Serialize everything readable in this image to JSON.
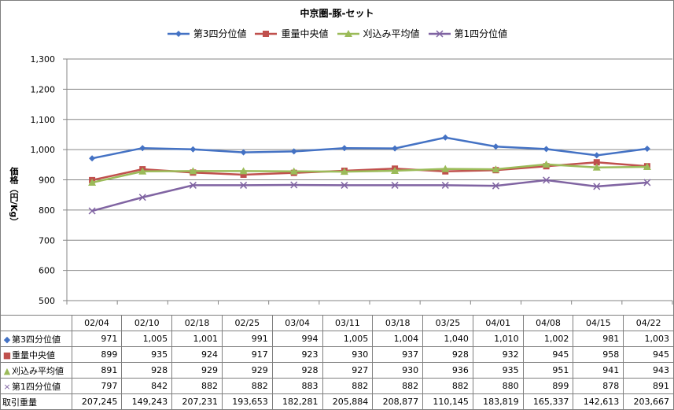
{
  "chart_data": {
    "type": "line",
    "title": "中京圏-豚-セット",
    "ylabel": "価格（円/Kg）",
    "ylim": [
      500,
      1300
    ],
    "yticks": [
      500,
      600,
      700,
      800,
      900,
      1000,
      1100,
      1200,
      1300
    ],
    "ytick_labels": [
      "500",
      "600",
      "700",
      "800",
      "900",
      "1,000",
      "1,100",
      "1,200",
      "1,300"
    ],
    "grid": true,
    "legend_position": "top",
    "categories": [
      "02/04",
      "02/10",
      "02/18",
      "02/25",
      "03/04",
      "03/11",
      "03/18",
      "03/25",
      "04/01",
      "04/08",
      "04/15",
      "04/22"
    ],
    "series": [
      {
        "name": "第3四分位値",
        "color": "#4472C4",
        "marker": "diamond",
        "values": [
          971,
          1005,
          1001,
          991,
          994,
          1005,
          1004,
          1040,
          1010,
          1002,
          981,
          1003
        ],
        "labels": [
          "971",
          "1,005",
          "1,001",
          "991",
          "994",
          "1,005",
          "1,004",
          "1,040",
          "1,010",
          "1,002",
          "981",
          "1,003"
        ]
      },
      {
        "name": "重量中央値",
        "color": "#C0504D",
        "marker": "square",
        "values": [
          899,
          935,
          924,
          917,
          923,
          930,
          937,
          928,
          932,
          945,
          958,
          945
        ],
        "labels": [
          "899",
          "935",
          "924",
          "917",
          "923",
          "930",
          "937",
          "928",
          "932",
          "945",
          "958",
          "945"
        ]
      },
      {
        "name": "刈込み平均値",
        "color": "#9BBB59",
        "marker": "triangle",
        "values": [
          891,
          928,
          929,
          929,
          928,
          927,
          930,
          936,
          935,
          951,
          941,
          943
        ],
        "labels": [
          "891",
          "928",
          "929",
          "929",
          "928",
          "927",
          "930",
          "936",
          "935",
          "951",
          "941",
          "943"
        ]
      },
      {
        "name": "第1四分位値",
        "color": "#8064A2",
        "marker": "x",
        "values": [
          797,
          842,
          882,
          882,
          883,
          882,
          882,
          882,
          880,
          899,
          878,
          891
        ],
        "labels": [
          "797",
          "842",
          "882",
          "882",
          "883",
          "882",
          "882",
          "882",
          "880",
          "899",
          "878",
          "891"
        ]
      }
    ],
    "extra_row": {
      "name": "取引重量",
      "values": [
        207245,
        149243,
        207231,
        193653,
        182281,
        205884,
        208877,
        110145,
        183819,
        165337,
        142613,
        203667
      ],
      "labels": [
        "207,245",
        "149,243",
        "207,231",
        "193,653",
        "182,281",
        "205,884",
        "208,877",
        "110,145",
        "183,819",
        "165,337",
        "142,613",
        "203,667"
      ]
    }
  }
}
